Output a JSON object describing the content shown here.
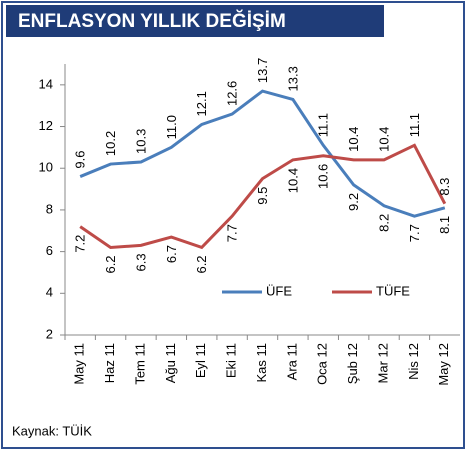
{
  "chart_data": {
    "type": "line",
    "title": "ENFLASYON YILLIK DEĞİŞİM",
    "categories": [
      "May 11",
      "Haz 11",
      "Tem 11",
      "Ağu 11",
      "Eyl 11",
      "Eki 11",
      "Kas 11",
      "Ara 11",
      "Oca 12",
      "Şub 12",
      "Mar 12",
      "Nis 12",
      "May 12"
    ],
    "series": [
      {
        "name": "ÜFE",
        "color": "#4a7ebb",
        "values": [
          9.6,
          10.2,
          10.3,
          11.0,
          12.1,
          12.6,
          13.7,
          13.3,
          11.1,
          9.2,
          8.2,
          7.7,
          8.1
        ],
        "value_labels": [
          "9.6",
          "10.2",
          "10.3",
          "11.0",
          "12.1",
          "12.6",
          "13.7",
          "13.3",
          "11.1",
          "9.2",
          "8.2",
          "7.7",
          "8.1"
        ]
      },
      {
        "name": "TÜFE",
        "color": "#be4b48",
        "values": [
          7.2,
          6.2,
          6.3,
          6.7,
          6.2,
          7.7,
          9.5,
          10.4,
          10.6,
          10.4,
          10.4,
          11.1,
          8.3
        ],
        "value_labels": [
          "7.2",
          "6.2",
          "6.3",
          "6.7",
          "6.2",
          "7.7",
          "9.5",
          "10.4",
          "10.6",
          "10.4",
          "10.4",
          "11.1",
          "8.3"
        ]
      }
    ],
    "ylim": [
      2,
      15
    ],
    "yticks": [
      2,
      4,
      6,
      8,
      10,
      12,
      14
    ],
    "legend": "lower right",
    "source": "Kaynak: TÜİK"
  }
}
